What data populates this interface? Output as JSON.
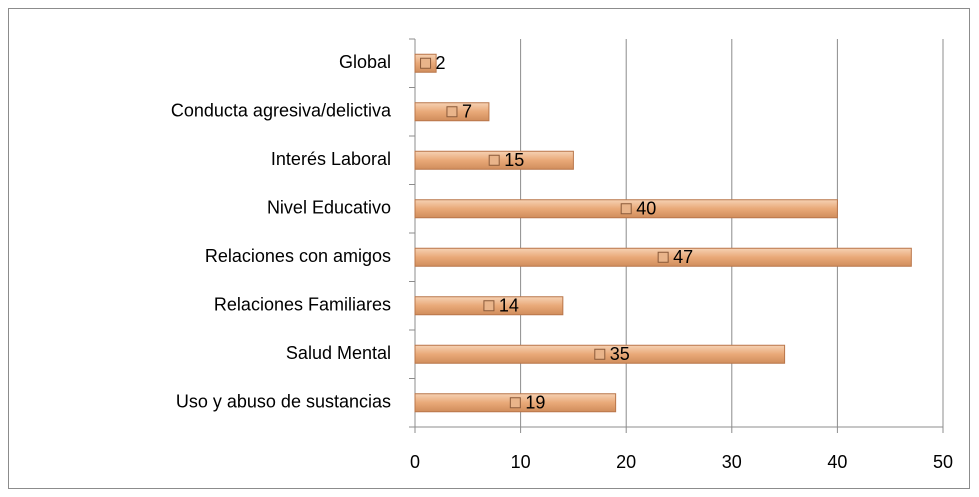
{
  "chart_data": {
    "type": "bar",
    "orientation": "horizontal",
    "categories": [
      "Global",
      "Conducta agresiva/delictiva",
      "Interés Laboral",
      "Nivel Educativo",
      "Relaciones con amigos",
      "Relaciones Familiares",
      "Salud Mental",
      "Uso y abuso de sustancias"
    ],
    "values": [
      2,
      7,
      15,
      40,
      47,
      14,
      35,
      19
    ],
    "color": "#e9a978",
    "xlim": [
      0,
      50
    ],
    "xticks": [
      0,
      10,
      20,
      30,
      40,
      50
    ],
    "grid": true
  }
}
